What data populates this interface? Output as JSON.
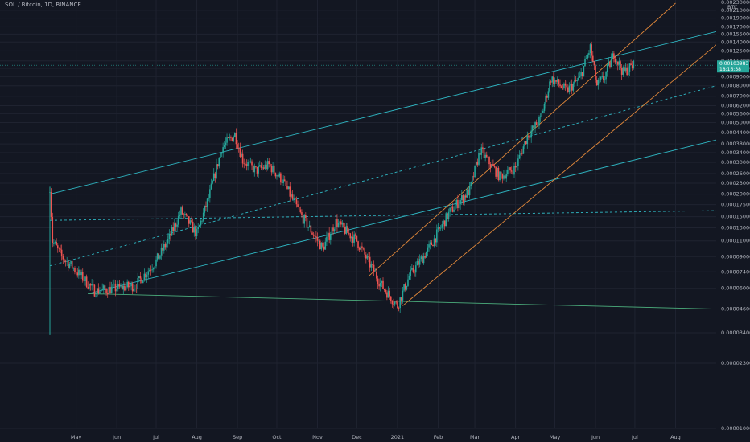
{
  "header": {
    "symbol": "SOL / Bitcoin, 1D, BINANCE"
  },
  "price_axis": {
    "unit": "BTC",
    "top_label": "0.00230000",
    "current_price": "0.00103983",
    "countdown": "18:16:38",
    "ticks": [
      "0.00210000",
      "0.00190000",
      "0.00170000",
      "0.00155000",
      "0.00140000",
      "0.00125000",
      "0.00110000",
      "0.00100000",
      "0.00090000",
      "0.00080000",
      "0.00070000",
      "0.00062000",
      "0.00056000",
      "0.00050000",
      "0.00044000",
      "0.00038000",
      "0.00034000",
      "0.00030000",
      "0.00026000",
      "0.00023000",
      "0.00020000",
      "0.00017500",
      "0.00015000",
      "0.00013000",
      "0.00011000",
      "0.00009000",
      "0.00007400",
      "0.00006000",
      "0.00004600",
      "0.00003400",
      "0.00002300",
      "0.00001000"
    ]
  },
  "colors": {
    "background": "#131722",
    "up": "#26a69a",
    "down": "#ef5350",
    "teal_lines": "#2fb8c4",
    "orange_lines": "#e0873a",
    "green_line": "#4caf7d",
    "price_tag": "#26a69a"
  },
  "chart_data": {
    "type": "candlestick",
    "scale": "log",
    "ylim": [
      1e-05,
      0.0023
    ],
    "x_labels": [
      "May",
      "Jun",
      "Jul",
      "Aug",
      "Sep",
      "Oct",
      "Nov",
      "Dec",
      "2021",
      "Feb",
      "Mar",
      "Apr",
      "May",
      "Jun",
      "Jul",
      "Aug"
    ],
    "price_path": [
      {
        "t": "2020-04-11",
        "p": 0.00022
      },
      {
        "t": "2020-04-13",
        "p": 0.00011
      },
      {
        "t": "2020-04-20",
        "p": 9e-05
      },
      {
        "t": "2020-05-01",
        "p": 7.5e-05
      },
      {
        "t": "2020-05-15",
        "p": 5.8e-05
      },
      {
        "t": "2020-06-01",
        "p": 6e-05
      },
      {
        "t": "2020-06-15",
        "p": 6.2e-05
      },
      {
        "t": "2020-07-01",
        "p": 8.5e-05
      },
      {
        "t": "2020-07-10",
        "p": 0.00011
      },
      {
        "t": "2020-07-20",
        "p": 0.00016
      },
      {
        "t": "2020-08-01",
        "p": 0.00012
      },
      {
        "t": "2020-08-10",
        "p": 0.00019
      },
      {
        "t": "2020-08-20",
        "p": 0.00036
      },
      {
        "t": "2020-08-30",
        "p": 0.00043
      },
      {
        "t": "2020-09-05",
        "p": 0.00031
      },
      {
        "t": "2020-09-15",
        "p": 0.00027
      },
      {
        "t": "2020-09-25",
        "p": 0.00029
      },
      {
        "t": "2020-10-05",
        "p": 0.00024
      },
      {
        "t": "2020-10-20",
        "p": 0.00015
      },
      {
        "t": "2020-11-05",
        "p": 0.0001
      },
      {
        "t": "2020-11-15",
        "p": 0.00014
      },
      {
        "t": "2020-12-01",
        "p": 0.00011
      },
      {
        "t": "2020-12-20",
        "p": 6.2e-05
      },
      {
        "t": "2021-01-01",
        "p": 4.8e-05
      },
      {
        "t": "2021-01-10",
        "p": 7e-05
      },
      {
        "t": "2021-01-25",
        "p": 0.0001
      },
      {
        "t": "2021-02-10",
        "p": 0.00016
      },
      {
        "t": "2021-02-25",
        "p": 0.00021
      },
      {
        "t": "2021-03-05",
        "p": 0.00035
      },
      {
        "t": "2021-03-20",
        "p": 0.00025
      },
      {
        "t": "2021-04-01",
        "p": 0.00028
      },
      {
        "t": "2021-04-10",
        "p": 0.00042
      },
      {
        "t": "2021-04-20",
        "p": 0.00052
      },
      {
        "t": "2021-04-28",
        "p": 0.00088
      },
      {
        "t": "2021-05-10",
        "p": 0.00075
      },
      {
        "t": "2021-05-20",
        "p": 0.00088
      },
      {
        "t": "2021-05-28",
        "p": 0.0013
      },
      {
        "t": "2021-06-02",
        "p": 0.0008
      },
      {
        "t": "2021-06-08",
        "p": 0.0009
      },
      {
        "t": "2021-06-15",
        "p": 0.0012
      },
      {
        "t": "2021-06-22",
        "p": 0.00095
      },
      {
        "t": "2021-06-30",
        "p": 0.00104
      }
    ],
    "drawings": [
      {
        "name": "upper-teal-channel",
        "color": "teal",
        "dash": false,
        "from": {
          "t": "2020-04-11",
          "p": 0.0002
        },
        "to": {
          "t": "2021-09-01",
          "p": 0.0016
        }
      },
      {
        "name": "middle-teal-dashed",
        "color": "teal",
        "dash": true,
        "from": {
          "t": "2020-04-11",
          "p": 8e-05
        },
        "to": {
          "t": "2021-09-01",
          "p": 0.0008
        }
      },
      {
        "name": "lower-teal-channel",
        "color": "teal",
        "dash": false,
        "from": {
          "t": "2020-05-10",
          "p": 5.6e-05
        },
        "to": {
          "t": "2021-09-01",
          "p": 0.0004
        }
      },
      {
        "name": "horizontal-dashed",
        "color": "teal",
        "dash": true,
        "from": {
          "t": "2020-04-11",
          "p": 0.000143
        },
        "to": {
          "t": "2021-09-01",
          "p": 0.000162
        }
      },
      {
        "name": "long-support-line",
        "color": "green",
        "dash": false,
        "from": {
          "t": "2020-05-10",
          "p": 5.6e-05
        },
        "to": {
          "t": "2021-09-01",
          "p": 4.6e-05
        }
      },
      {
        "name": "orange-upper",
        "color": "orange",
        "dash": false,
        "from": {
          "t": "2020-12-10",
          "p": 7e-05
        },
        "to": {
          "t": "2021-08-01",
          "p": 0.0023
        }
      },
      {
        "name": "orange-lower",
        "color": "orange",
        "dash": false,
        "from": {
          "t": "2021-01-05",
          "p": 4.8e-05
        },
        "to": {
          "t": "2021-09-01",
          "p": 0.00135
        }
      }
    ]
  }
}
